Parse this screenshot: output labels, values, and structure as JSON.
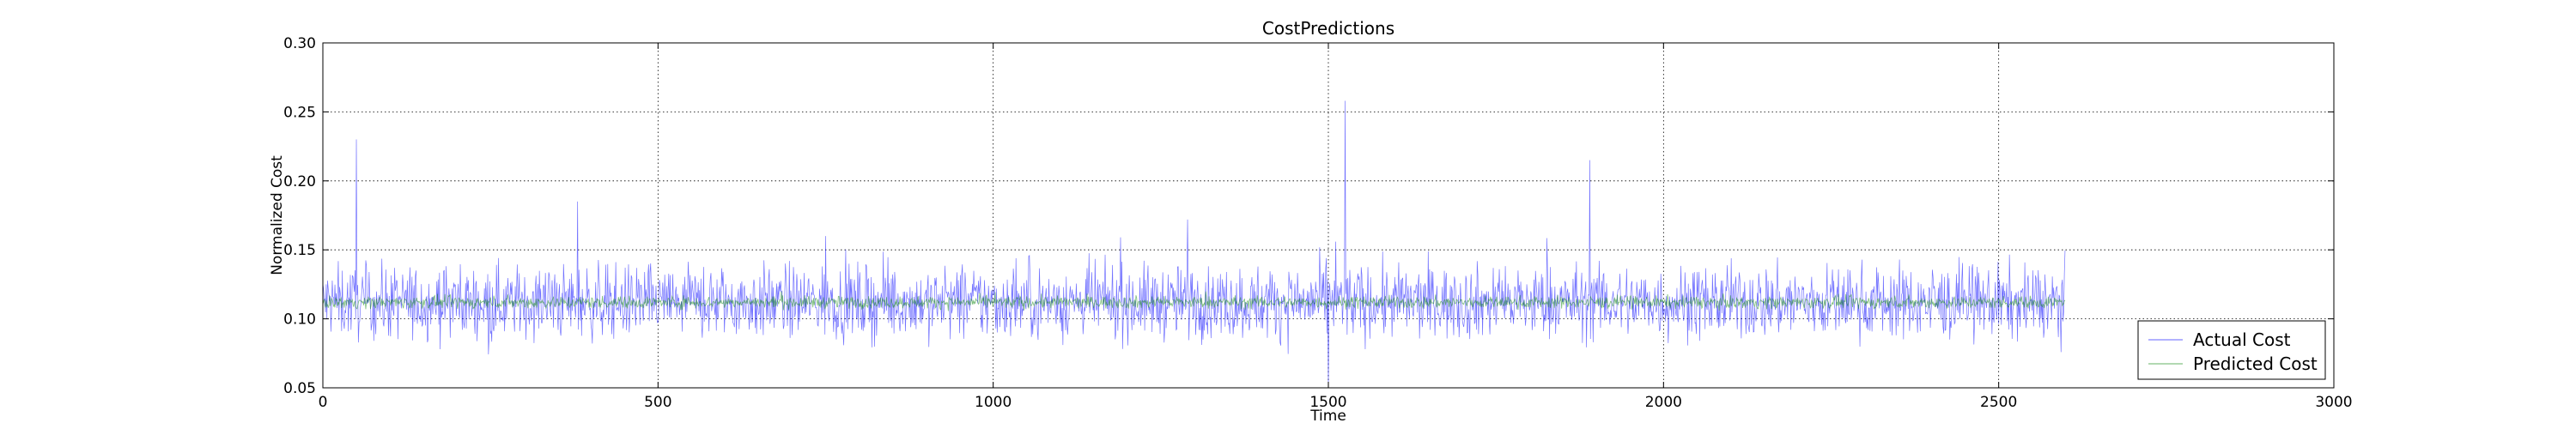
{
  "chart_data": {
    "type": "line",
    "title": "CostPredictions",
    "xlabel": "Time",
    "ylabel": "Normalized Cost",
    "xlim": [
      0,
      3000
    ],
    "ylim": [
      0.05,
      0.3
    ],
    "x_ticks": [
      0,
      500,
      1000,
      1500,
      2000,
      2500,
      3000
    ],
    "x_tick_labels": [
      "0",
      "500",
      "1000",
      "1500",
      "2000",
      "2500",
      "3000"
    ],
    "y_ticks": [
      0.05,
      0.1,
      0.15,
      0.2,
      0.25,
      0.3
    ],
    "y_tick_labels": [
      "0.05",
      "0.10",
      "0.15",
      "0.20",
      "0.25",
      "0.30"
    ],
    "grid": true,
    "legend_position": "lower-right",
    "series": [
      {
        "name": "Actual Cost",
        "color": "#0000ff",
        "x_start": 0,
        "x_step": 1,
        "count": 2600,
        "mean": 0.112,
        "typical_range": [
          0.08,
          0.15
        ],
        "spikes": [
          {
            "x": 50,
            "y": 0.23
          },
          {
            "x": 380,
            "y": 0.185
          },
          {
            "x": 750,
            "y": 0.16
          },
          {
            "x": 1290,
            "y": 0.172
          },
          {
            "x": 1500,
            "y": 0.05
          },
          {
            "x": 1525,
            "y": 0.258
          },
          {
            "x": 1890,
            "y": 0.215
          }
        ]
      },
      {
        "name": "Predicted Cost",
        "color": "#008000",
        "x_start": 0,
        "x_step": 1,
        "count": 2600,
        "mean": 0.112,
        "typical_range": [
          0.108,
          0.118
        ]
      }
    ]
  }
}
